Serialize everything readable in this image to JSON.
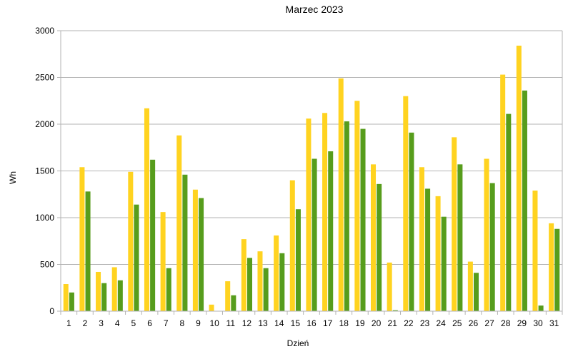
{
  "chart_data": {
    "type": "bar",
    "title": "Marzec 2023",
    "xlabel": "Dzień",
    "ylabel": "Wh",
    "ylim": [
      0,
      3000
    ],
    "yticks": [
      0,
      500,
      1000,
      1500,
      2000,
      2500,
      3000
    ],
    "grid": true,
    "legend": "none",
    "categories": [
      "1",
      "2",
      "3",
      "4",
      "5",
      "6",
      "7",
      "8",
      "9",
      "10",
      "11",
      "12",
      "13",
      "14",
      "15",
      "16",
      "17",
      "18",
      "19",
      "20",
      "21",
      "22",
      "23",
      "24",
      "25",
      "26",
      "27",
      "28",
      "29",
      "30",
      "31"
    ],
    "series": [
      {
        "color": "#ffd320",
        "values": [
          290,
          1540,
          420,
          470,
          1490,
          2170,
          1060,
          1880,
          1300,
          70,
          320,
          770,
          640,
          810,
          1400,
          2060,
          2120,
          2490,
          2250,
          1570,
          520,
          2300,
          1540,
          1230,
          1860,
          530,
          1630,
          2530,
          2840,
          1290,
          940
        ]
      },
      {
        "color": "#579d1c",
        "values": [
          200,
          1280,
          300,
          330,
          1140,
          1620,
          460,
          1460,
          1210,
          0,
          170,
          570,
          460,
          620,
          1090,
          1630,
          1710,
          2030,
          1950,
          1360,
          10,
          1910,
          1310,
          1010,
          1570,
          410,
          1370,
          2110,
          2360,
          60,
          880
        ]
      }
    ]
  }
}
